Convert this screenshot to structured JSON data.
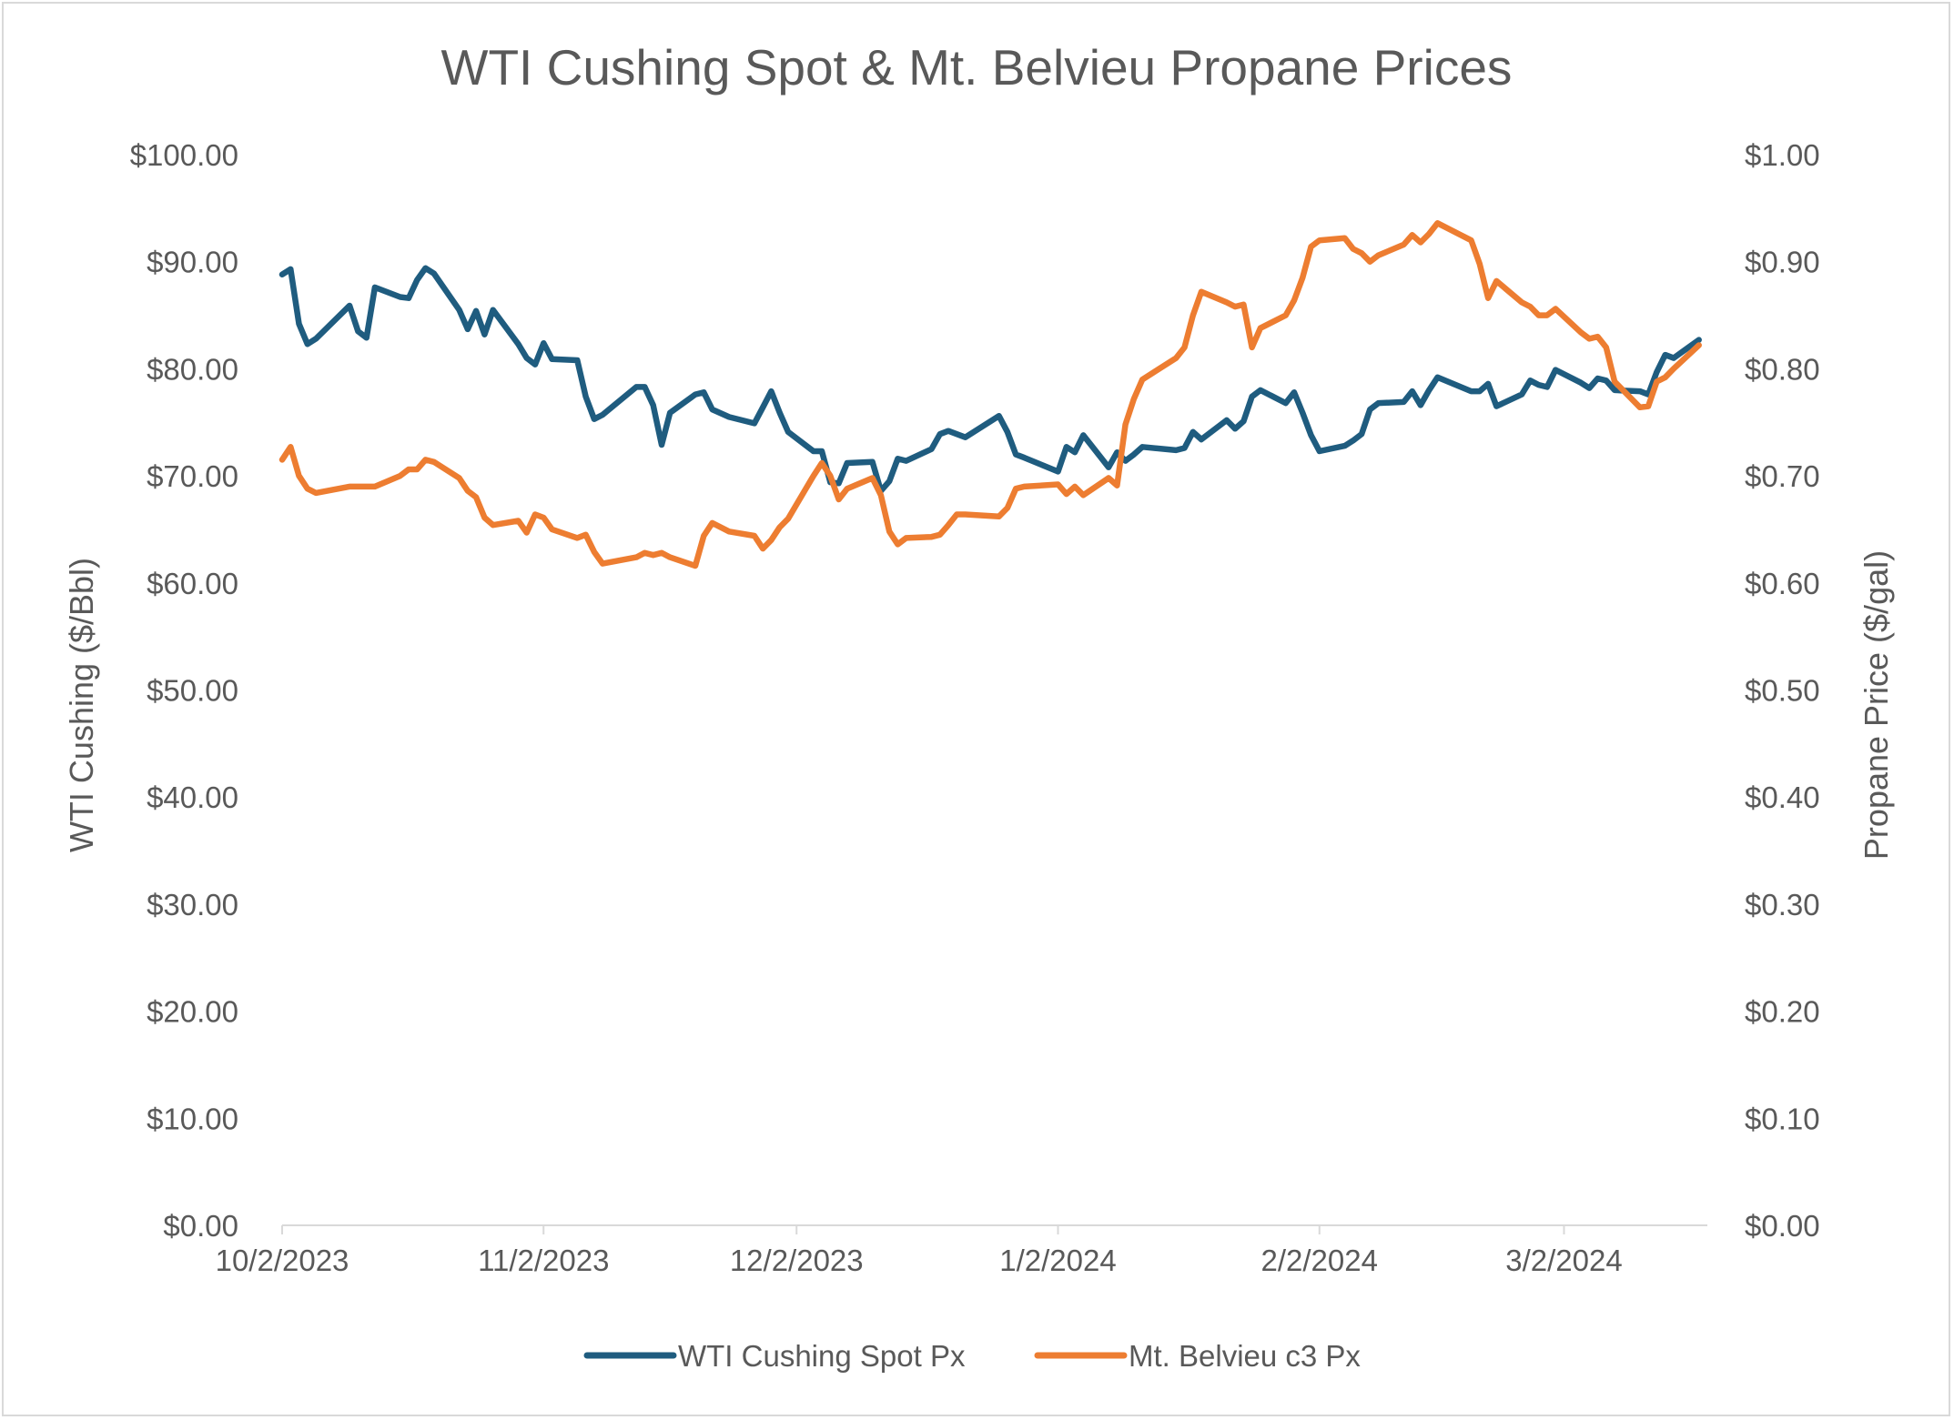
{
  "chart_data": {
    "type": "line",
    "title": "WTI Cushing Spot & Mt. Belvieu Propane Prices",
    "ylabel_left": "WTI Cushing ($/Bbl)",
    "ylabel_right": "Propane Price ($/gal)",
    "x_axis": {
      "type": "date",
      "range": [
        "2023-10-02",
        "2024-03-19"
      ],
      "tick_dates": [
        "2023-10-02",
        "2023-11-02",
        "2023-12-02",
        "2024-01-02",
        "2024-02-02",
        "2024-03-02"
      ],
      "tick_labels": [
        "10/2/2023",
        "11/2/2023",
        "12/2/2023",
        "1/2/2024",
        "2/2/2024",
        "3/2/2024"
      ]
    },
    "y_left": {
      "range": [
        0,
        100
      ],
      "ticks": [
        0,
        10,
        20,
        30,
        40,
        50,
        60,
        70,
        80,
        90,
        100
      ],
      "tick_labels": [
        "$0.00",
        "$10.00",
        "$20.00",
        "$30.00",
        "$40.00",
        "$50.00",
        "$60.00",
        "$70.00",
        "$80.00",
        "$90.00",
        "$100.00"
      ]
    },
    "y_right": {
      "range": [
        0,
        1.0
      ],
      "ticks": [
        0,
        0.1,
        0.2,
        0.3,
        0.4,
        0.5,
        0.6,
        0.7,
        0.8,
        0.9,
        1.0
      ],
      "tick_labels": [
        "$0.00",
        "$0.10",
        "$0.20",
        "$0.30",
        "$0.40",
        "$0.50",
        "$0.60",
        "$0.70",
        "$0.80",
        "$0.90",
        "$1.00"
      ]
    },
    "grid": false,
    "legend_position": "bottom",
    "series": [
      {
        "name": "WTI Cushing Spot Px",
        "axis": "left",
        "color": "#1f5c7f",
        "points": [
          [
            "2023-10-02",
            88.8
          ],
          [
            "2023-10-03",
            89.3
          ],
          [
            "2023-10-04",
            84.2
          ],
          [
            "2023-10-05",
            82.3
          ],
          [
            "2023-10-06",
            82.8
          ],
          [
            "2023-10-10",
            85.9
          ],
          [
            "2023-10-11",
            83.5
          ],
          [
            "2023-10-12",
            82.9
          ],
          [
            "2023-10-13",
            87.6
          ],
          [
            "2023-10-16",
            86.7
          ],
          [
            "2023-10-17",
            86.6
          ],
          [
            "2023-10-18",
            88.3
          ],
          [
            "2023-10-19",
            89.4
          ],
          [
            "2023-10-20",
            88.9
          ],
          [
            "2023-10-23",
            85.5
          ],
          [
            "2023-10-24",
            83.7
          ],
          [
            "2023-10-25",
            85.4
          ],
          [
            "2023-10-26",
            83.2
          ],
          [
            "2023-10-27",
            85.5
          ],
          [
            "2023-10-30",
            82.3
          ],
          [
            "2023-10-31",
            81.0
          ],
          [
            "2023-11-01",
            80.4
          ],
          [
            "2023-11-02",
            82.4
          ],
          [
            "2023-11-03",
            80.9
          ],
          [
            "2023-11-06",
            80.8
          ],
          [
            "2023-11-07",
            77.4
          ],
          [
            "2023-11-08",
            75.3
          ],
          [
            "2023-11-09",
            75.7
          ],
          [
            "2023-11-13",
            78.3
          ],
          [
            "2023-11-14",
            78.3
          ],
          [
            "2023-11-15",
            76.6
          ],
          [
            "2023-11-16",
            72.9
          ],
          [
            "2023-11-17",
            75.9
          ],
          [
            "2023-11-20",
            77.6
          ],
          [
            "2023-11-21",
            77.8
          ],
          [
            "2023-11-22",
            76.2
          ],
          [
            "2023-11-24",
            75.5
          ],
          [
            "2023-11-27",
            74.9
          ],
          [
            "2023-11-28",
            76.4
          ],
          [
            "2023-11-29",
            77.9
          ],
          [
            "2023-11-30",
            75.9
          ],
          [
            "2023-12-01",
            74.1
          ],
          [
            "2023-12-04",
            72.3
          ],
          [
            "2023-12-05",
            72.3
          ],
          [
            "2023-12-06",
            69.4
          ],
          [
            "2023-12-07",
            69.3
          ],
          [
            "2023-12-08",
            71.2
          ],
          [
            "2023-12-11",
            71.3
          ],
          [
            "2023-12-12",
            68.6
          ],
          [
            "2023-12-13",
            69.5
          ],
          [
            "2023-12-14",
            71.6
          ],
          [
            "2023-12-15",
            71.4
          ],
          [
            "2023-12-18",
            72.5
          ],
          [
            "2023-12-19",
            73.9
          ],
          [
            "2023-12-20",
            74.2
          ],
          [
            "2023-12-21",
            73.9
          ],
          [
            "2023-12-22",
            73.6
          ],
          [
            "2023-12-26",
            75.6
          ],
          [
            "2023-12-27",
            74.1
          ],
          [
            "2023-12-28",
            72.0
          ],
          [
            "2023-12-29",
            71.7
          ],
          [
            "2024-01-02",
            70.4
          ],
          [
            "2024-01-03",
            72.7
          ],
          [
            "2024-01-04",
            72.2
          ],
          [
            "2024-01-05",
            73.8
          ],
          [
            "2024-01-08",
            70.8
          ],
          [
            "2024-01-09",
            72.2
          ],
          [
            "2024-01-10",
            71.4
          ],
          [
            "2024-01-11",
            72.0
          ],
          [
            "2024-01-12",
            72.7
          ],
          [
            "2024-01-16",
            72.4
          ],
          [
            "2024-01-17",
            72.6
          ],
          [
            "2024-01-18",
            74.1
          ],
          [
            "2024-01-19",
            73.4
          ],
          [
            "2024-01-22",
            75.2
          ],
          [
            "2024-01-23",
            74.4
          ],
          [
            "2024-01-24",
            75.1
          ],
          [
            "2024-01-25",
            77.4
          ],
          [
            "2024-01-26",
            78.0
          ],
          [
            "2024-01-29",
            76.8
          ],
          [
            "2024-01-30",
            77.8
          ],
          [
            "2024-01-31",
            75.9
          ],
          [
            "2024-02-01",
            73.8
          ],
          [
            "2024-02-02",
            72.3
          ],
          [
            "2024-02-05",
            72.8
          ],
          [
            "2024-02-06",
            73.3
          ],
          [
            "2024-02-07",
            73.9
          ],
          [
            "2024-02-08",
            76.2
          ],
          [
            "2024-02-09",
            76.8
          ],
          [
            "2024-02-12",
            76.9
          ],
          [
            "2024-02-13",
            77.9
          ],
          [
            "2024-02-14",
            76.6
          ],
          [
            "2024-02-15",
            78.0
          ],
          [
            "2024-02-16",
            79.2
          ],
          [
            "2024-02-20",
            77.9
          ],
          [
            "2024-02-21",
            77.9
          ],
          [
            "2024-02-22",
            78.6
          ],
          [
            "2024-02-23",
            76.5
          ],
          [
            "2024-02-26",
            77.6
          ],
          [
            "2024-02-27",
            78.9
          ],
          [
            "2024-02-28",
            78.5
          ],
          [
            "2024-02-29",
            78.3
          ],
          [
            "2024-03-01",
            79.9
          ],
          [
            "2024-03-04",
            78.7
          ],
          [
            "2024-03-05",
            78.2
          ],
          [
            "2024-03-06",
            79.1
          ],
          [
            "2024-03-07",
            78.9
          ],
          [
            "2024-03-08",
            78.0
          ],
          [
            "2024-03-11",
            77.9
          ],
          [
            "2024-03-12",
            77.6
          ],
          [
            "2024-03-13",
            79.7
          ],
          [
            "2024-03-14",
            81.3
          ],
          [
            "2024-03-15",
            81.0
          ],
          [
            "2024-03-18",
            82.7
          ]
        ]
      },
      {
        "name": "Mt. Belvieu c3 Px",
        "axis": "right",
        "color": "#ed7d31",
        "points": [
          [
            "2023-10-02",
            0.715
          ],
          [
            "2023-10-03",
            0.727
          ],
          [
            "2023-10-04",
            0.7
          ],
          [
            "2023-10-05",
            0.688
          ],
          [
            "2023-10-06",
            0.684
          ],
          [
            "2023-10-10",
            0.69
          ],
          [
            "2023-10-13",
            0.69
          ],
          [
            "2023-10-16",
            0.7
          ],
          [
            "2023-10-17",
            0.706
          ],
          [
            "2023-10-18",
            0.706
          ],
          [
            "2023-10-19",
            0.715
          ],
          [
            "2023-10-20",
            0.713
          ],
          [
            "2023-10-23",
            0.698
          ],
          [
            "2023-10-24",
            0.686
          ],
          [
            "2023-10-25",
            0.68
          ],
          [
            "2023-10-26",
            0.661
          ],
          [
            "2023-10-27",
            0.654
          ],
          [
            "2023-10-30",
            0.658
          ],
          [
            "2023-10-31",
            0.647
          ],
          [
            "2023-11-01",
            0.664
          ],
          [
            "2023-11-02",
            0.661
          ],
          [
            "2023-11-03",
            0.65
          ],
          [
            "2023-11-06",
            0.642
          ],
          [
            "2023-11-07",
            0.645
          ],
          [
            "2023-11-08",
            0.629
          ],
          [
            "2023-11-09",
            0.618
          ],
          [
            "2023-11-13",
            0.624
          ],
          [
            "2023-11-14",
            0.628
          ],
          [
            "2023-11-15",
            0.626
          ],
          [
            "2023-11-16",
            0.628
          ],
          [
            "2023-11-17",
            0.624
          ],
          [
            "2023-11-20",
            0.616
          ],
          [
            "2023-11-21",
            0.644
          ],
          [
            "2023-11-22",
            0.656
          ],
          [
            "2023-11-24",
            0.648
          ],
          [
            "2023-11-27",
            0.644
          ],
          [
            "2023-11-28",
            0.632
          ],
          [
            "2023-11-29",
            0.64
          ],
          [
            "2023-11-30",
            0.652
          ],
          [
            "2023-12-01",
            0.66
          ],
          [
            "2023-12-04",
            0.7
          ],
          [
            "2023-12-05",
            0.712
          ],
          [
            "2023-12-06",
            0.7
          ],
          [
            "2023-12-07",
            0.678
          ],
          [
            "2023-12-08",
            0.688
          ],
          [
            "2023-12-11",
            0.698
          ],
          [
            "2023-12-12",
            0.682
          ],
          [
            "2023-12-13",
            0.648
          ],
          [
            "2023-12-14",
            0.636
          ],
          [
            "2023-12-15",
            0.642
          ],
          [
            "2023-12-18",
            0.643
          ],
          [
            "2023-12-19",
            0.645
          ],
          [
            "2023-12-20",
            0.654
          ],
          [
            "2023-12-21",
            0.664
          ],
          [
            "2023-12-22",
            0.664
          ],
          [
            "2023-12-26",
            0.662
          ],
          [
            "2023-12-27",
            0.67
          ],
          [
            "2023-12-28",
            0.688
          ],
          [
            "2023-12-29",
            0.69
          ],
          [
            "2024-01-02",
            0.692
          ],
          [
            "2024-01-03",
            0.683
          ],
          [
            "2024-01-04",
            0.69
          ],
          [
            "2024-01-05",
            0.682
          ],
          [
            "2024-01-08",
            0.698
          ],
          [
            "2024-01-09",
            0.691
          ],
          [
            "2024-01-10",
            0.748
          ],
          [
            "2024-01-11",
            0.772
          ],
          [
            "2024-01-12",
            0.79
          ],
          [
            "2024-01-16",
            0.81
          ],
          [
            "2024-01-17",
            0.82
          ],
          [
            "2024-01-18",
            0.85
          ],
          [
            "2024-01-19",
            0.872
          ],
          [
            "2024-01-22",
            0.862
          ],
          [
            "2024-01-23",
            0.858
          ],
          [
            "2024-01-24",
            0.86
          ],
          [
            "2024-01-25",
            0.82
          ],
          [
            "2024-01-26",
            0.838
          ],
          [
            "2024-01-29",
            0.85
          ],
          [
            "2024-01-30",
            0.864
          ],
          [
            "2024-01-31",
            0.885
          ],
          [
            "2024-02-01",
            0.914
          ],
          [
            "2024-02-02",
            0.92
          ],
          [
            "2024-02-05",
            0.922
          ],
          [
            "2024-02-06",
            0.912
          ],
          [
            "2024-02-07",
            0.908
          ],
          [
            "2024-02-08",
            0.9
          ],
          [
            "2024-02-09",
            0.906
          ],
          [
            "2024-02-12",
            0.916
          ],
          [
            "2024-02-13",
            0.925
          ],
          [
            "2024-02-14",
            0.918
          ],
          [
            "2024-02-15",
            0.926
          ],
          [
            "2024-02-16",
            0.936
          ],
          [
            "2024-02-20",
            0.92
          ],
          [
            "2024-02-21",
            0.898
          ],
          [
            "2024-02-22",
            0.866
          ],
          [
            "2024-02-23",
            0.882
          ],
          [
            "2024-02-26",
            0.862
          ],
          [
            "2024-02-27",
            0.858
          ],
          [
            "2024-02-28",
            0.85
          ],
          [
            "2024-02-29",
            0.85
          ],
          [
            "2024-03-01",
            0.856
          ],
          [
            "2024-03-04",
            0.834
          ],
          [
            "2024-03-05",
            0.828
          ],
          [
            "2024-03-06",
            0.83
          ],
          [
            "2024-03-07",
            0.82
          ],
          [
            "2024-03-08",
            0.788
          ],
          [
            "2024-03-11",
            0.764
          ],
          [
            "2024-03-12",
            0.765
          ],
          [
            "2024-03-13",
            0.788
          ],
          [
            "2024-03-14",
            0.792
          ],
          [
            "2024-03-15",
            0.8
          ],
          [
            "2024-03-18",
            0.822
          ]
        ]
      }
    ]
  }
}
